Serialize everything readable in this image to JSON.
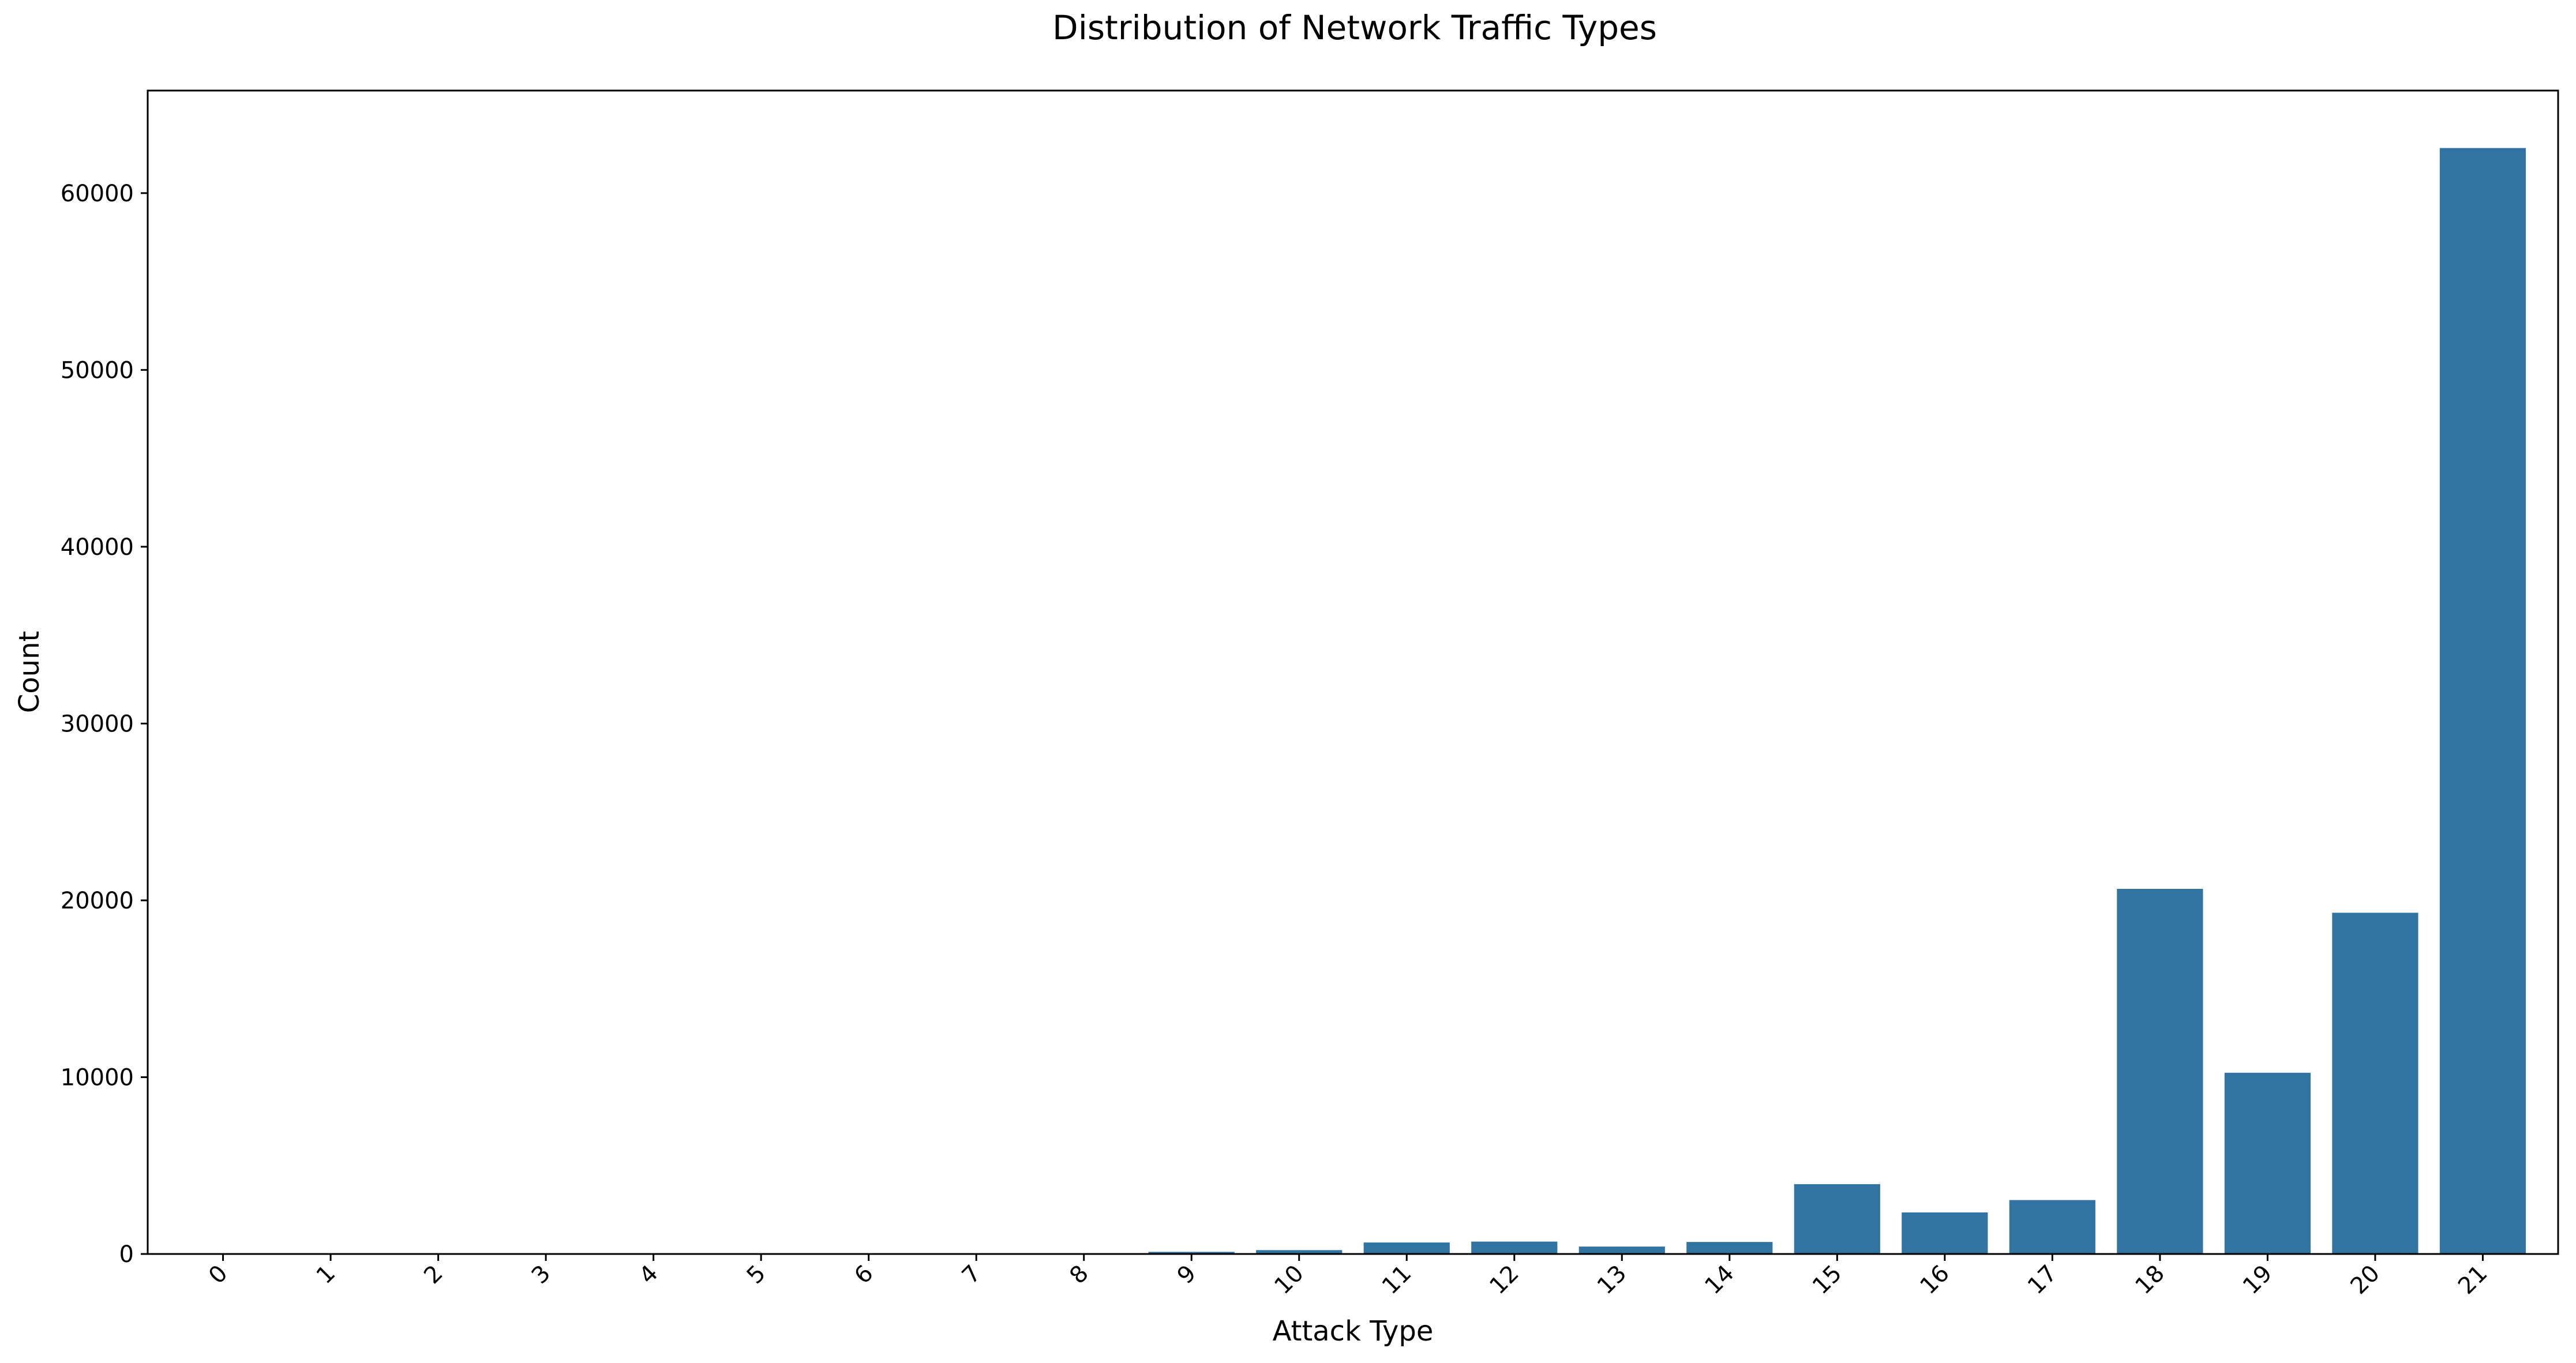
{
  "chart_data": {
    "type": "bar",
    "title": "Distribution of Network Traffic Types",
    "xlabel": "Attack Type",
    "ylabel": "Count",
    "categories": [
      "0",
      "1",
      "2",
      "3",
      "4",
      "5",
      "6",
      "7",
      "8",
      "9",
      "10",
      "11",
      "12",
      "13",
      "14",
      "15",
      "16",
      "17",
      "18",
      "19",
      "20",
      "21"
    ],
    "values": [
      3,
      2,
      2,
      4,
      10,
      16,
      22,
      30,
      35,
      120,
      220,
      650,
      700,
      420,
      680,
      3950,
      2350,
      3050,
      20650,
      10250,
      19300,
      62550
    ],
    "ylim": [
      0,
      65800
    ],
    "yticks": [
      0,
      10000,
      20000,
      30000,
      40000,
      50000,
      60000
    ],
    "ytick_labels": [
      "0",
      "10000",
      "20000",
      "30000",
      "40000",
      "50000",
      "60000"
    ],
    "xtick_rotation": 45,
    "grid": false,
    "legend": false,
    "bar_color": "#3274a1",
    "axis_color": "#000000"
  }
}
